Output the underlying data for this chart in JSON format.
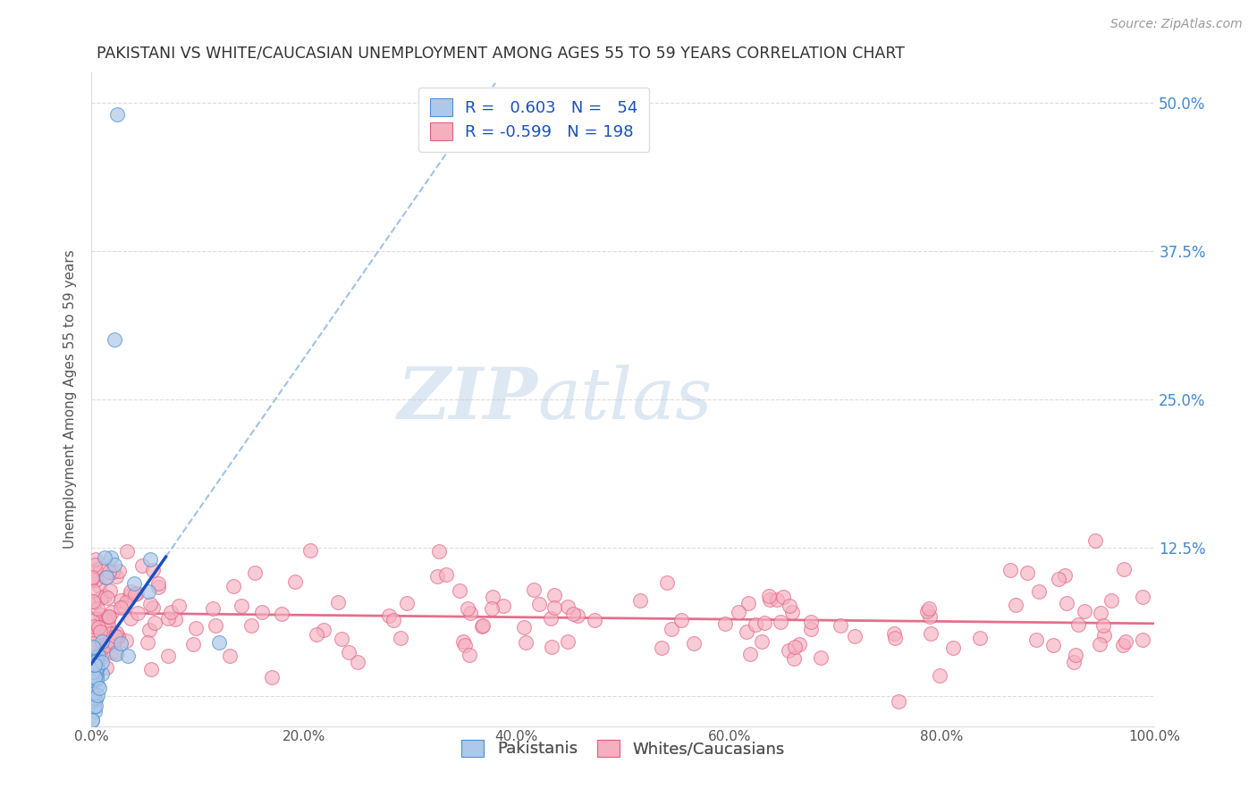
{
  "title": "PAKISTANI VS WHITE/CAUCASIAN UNEMPLOYMENT AMONG AGES 55 TO 59 YEARS CORRELATION CHART",
  "source": "Source: ZipAtlas.com",
  "ylabel": "Unemployment Among Ages 55 to 59 years",
  "xlim": [
    0,
    1.0
  ],
  "ylim": [
    -0.025,
    0.525
  ],
  "xtick_labels": [
    "0.0%",
    "20.0%",
    "40.0%",
    "60.0%",
    "80.0%",
    "100.0%"
  ],
  "xtick_vals": [
    0.0,
    0.2,
    0.4,
    0.6,
    0.8,
    1.0
  ],
  "ytick_right_labels": [
    "12.5%",
    "25.0%",
    "37.5%",
    "50.0%"
  ],
  "ytick_right_vals": [
    0.125,
    0.25,
    0.375,
    0.5
  ],
  "ytick_grid_vals": [
    0.0,
    0.125,
    0.25,
    0.375,
    0.5
  ],
  "blue_R": 0.603,
  "blue_N": 54,
  "pink_R": -0.599,
  "pink_N": 198,
  "blue_scatter_color": "#adc8e8",
  "blue_scatter_edge": "#5090d0",
  "pink_scatter_color": "#f5b0c0",
  "pink_scatter_edge": "#e06080",
  "blue_line_color": "#1a50c0",
  "pink_line_color": "#e06080",
  "blue_dash_color": "#90b8e0",
  "legend_R_color": "#1a4fbd",
  "watermark_zip_color": "#dde8f0",
  "watermark_atlas_color": "#dde8f0",
  "background_color": "#ffffff",
  "grid_color": "#cccccc",
  "title_color": "#333333",
  "axis_color": "#888888",
  "right_tick_color": "#4488cc"
}
